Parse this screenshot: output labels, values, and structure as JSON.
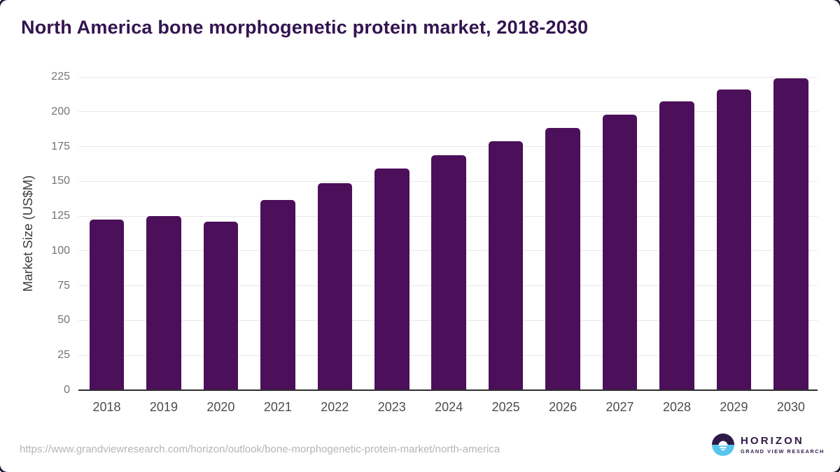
{
  "header": {
    "title": "North America bone morphogenetic protein market, 2018-2030"
  },
  "chart_data": {
    "type": "bar",
    "title": "North America bone morphogenetic protein market, 2018-2030",
    "categories": [
      "2018",
      "2019",
      "2020",
      "2021",
      "2022",
      "2023",
      "2024",
      "2025",
      "2026",
      "2027",
      "2028",
      "2029",
      "2030"
    ],
    "values": [
      122.5,
      125,
      121,
      136.5,
      148.5,
      159,
      169,
      179,
      188.5,
      198,
      207.5,
      216,
      224
    ],
    "xlabel": "",
    "ylabel": "Market Size (US$M)",
    "ylim": [
      0,
      225
    ],
    "yticks": [
      0,
      25,
      50,
      75,
      100,
      125,
      150,
      175,
      200,
      225
    ],
    "grid": "horizontal",
    "legend": "none",
    "bar_color": "#4B1059",
    "gridline_color": "#e8e8e8",
    "axis_line_color": "#2d2d2d"
  },
  "footer": {
    "source_url": "https://www.grandviewresearch.com/horizon/outlook/bone-morphogenetic-protein-market/north-america",
    "logo": {
      "name": "HORIZON",
      "subtitle": "GRAND VIEW RESEARCH",
      "icon": "horizon-sun-icon",
      "purple": "#2e1a47",
      "blue": "#58c5ec"
    }
  }
}
